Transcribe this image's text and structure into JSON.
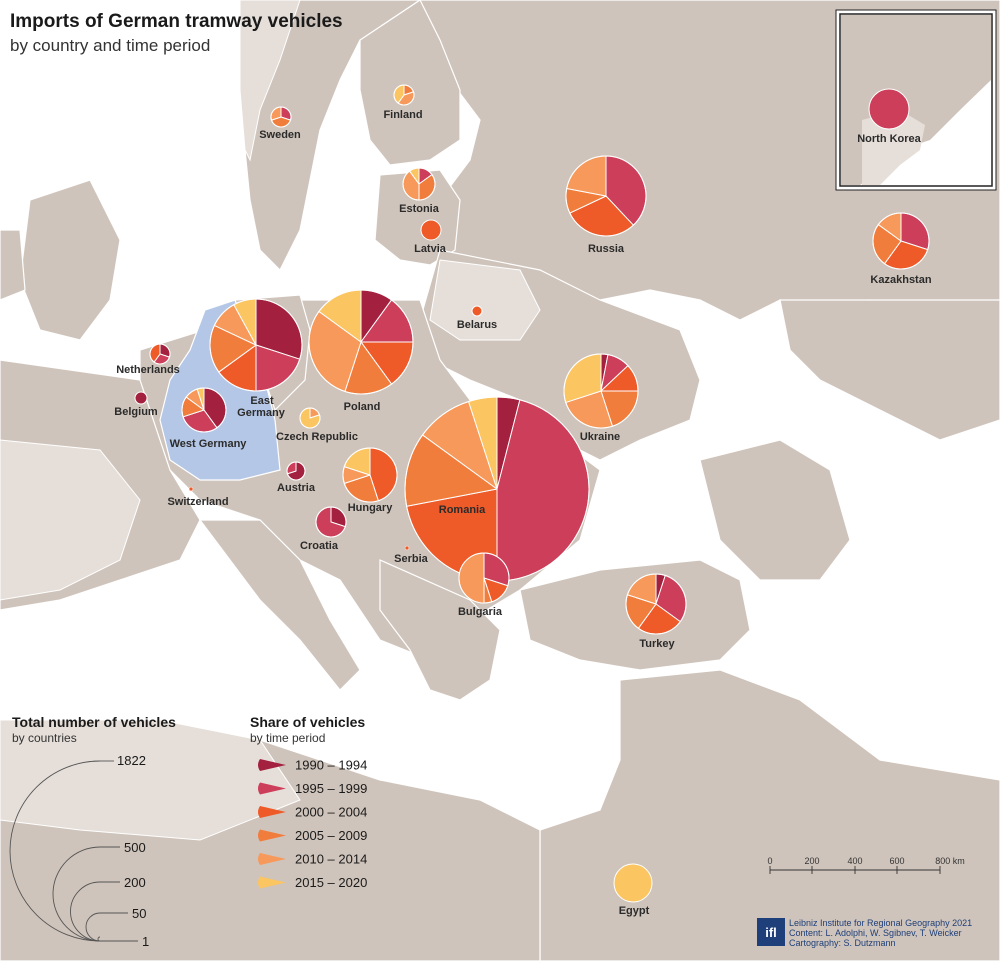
{
  "title": "Imports of German tramway vehicles",
  "subtitle": "by country and time period",
  "colors": {
    "sea": "#ffffff",
    "land": "#cfc4bb",
    "land_light": "#e6dfd9",
    "germany": "#b5c7e6",
    "border": "#ffffff",
    "pie_stroke": "#ffffff"
  },
  "periods": [
    {
      "label": "1990 – 1994",
      "color": "#a3213f"
    },
    {
      "label": "1995 – 1999",
      "color": "#cc3e59"
    },
    {
      "label": "2000 – 2004",
      "color": "#ee5a28"
    },
    {
      "label": "2005 – 2009",
      "color": "#f17d3d"
    },
    {
      "label": "2010 – 2014",
      "color": "#f6995a"
    },
    {
      "label": "2015 – 2020",
      "color": "#fbc561"
    }
  ],
  "size_legend": {
    "heading": "Total number of vehicles",
    "subheading": "by countries",
    "values": [
      "1822",
      "500",
      "200",
      "50",
      "1"
    ]
  },
  "share_legend": {
    "heading": "Share of vehicles",
    "subheading": "by time period"
  },
  "scale_bar": {
    "ticks": [
      "0",
      "200",
      "400",
      "600",
      "800 km"
    ]
  },
  "credits": {
    "logo": "ifl",
    "lines": [
      "Leibniz Institute for Regional Geography 2021",
      "Content: L. Adolphi, W. Sgibnev, T. Weicker",
      "Cartography: S. Dutzmann"
    ]
  },
  "inset": {
    "label": "North Korea"
  },
  "countries": [
    {
      "name": "Sweden",
      "shares": [
        0,
        30,
        0,
        40,
        30,
        0
      ]
    },
    {
      "name": "Finland",
      "shares": [
        0,
        0,
        0,
        20,
        40,
        40
      ]
    },
    {
      "name": "Estonia",
      "shares": [
        0,
        15,
        0,
        35,
        40,
        10
      ]
    },
    {
      "name": "Latvia",
      "shares": [
        0,
        0,
        100,
        0,
        0,
        0
      ]
    },
    {
      "name": "Russia",
      "shares": [
        0,
        38,
        30,
        10,
        22,
        0
      ]
    },
    {
      "name": "Kazakhstan",
      "shares": [
        0,
        30,
        30,
        25,
        15,
        0
      ]
    },
    {
      "name": "Belarus",
      "shares": [
        0,
        0,
        100,
        0,
        0,
        0
      ]
    },
    {
      "name": "Netherlands",
      "shares": [
        30,
        30,
        40,
        0,
        0,
        0
      ]
    },
    {
      "name": "Belgium",
      "shares": [
        100,
        0,
        0,
        0,
        0,
        0
      ]
    },
    {
      "name": "East Germany",
      "shares": [
        30,
        20,
        15,
        17,
        10,
        8
      ]
    },
    {
      "name": "West Germany",
      "shares": [
        40,
        30,
        0,
        15,
        10,
        5
      ]
    },
    {
      "name": "Poland",
      "shares": [
        10,
        15,
        15,
        15,
        30,
        15
      ]
    },
    {
      "name": "Ukraine",
      "shares": [
        3,
        10,
        12,
        20,
        25,
        30
      ]
    },
    {
      "name": "Czech Republic",
      "shares": [
        0,
        0,
        0,
        0,
        20,
        80
      ]
    },
    {
      "name": "Austria",
      "shares": [
        70,
        30,
        0,
        0,
        0,
        0
      ]
    },
    {
      "name": "Switzerland",
      "shares": [
        0,
        0,
        100,
        0,
        0,
        0
      ]
    },
    {
      "name": "Hungary",
      "shares": [
        0,
        0,
        45,
        25,
        10,
        20
      ]
    },
    {
      "name": "Romania",
      "shares": [
        4,
        46,
        22,
        13,
        10,
        5
      ]
    },
    {
      "name": "Croatia",
      "shares": [
        30,
        70,
        0,
        0,
        0,
        0
      ]
    },
    {
      "name": "Serbia",
      "shares": [
        0,
        0,
        100,
        0,
        0,
        0
      ]
    },
    {
      "name": "Bulgaria",
      "shares": [
        0,
        30,
        15,
        5,
        50,
        0
      ]
    },
    {
      "name": "Turkey",
      "shares": [
        5,
        30,
        25,
        20,
        20,
        0
      ]
    },
    {
      "name": "Egypt",
      "shares": [
        0,
        0,
        0,
        0,
        0,
        100
      ]
    },
    {
      "name": "North Korea",
      "shares": [
        0,
        100,
        0,
        0,
        0,
        0
      ]
    }
  ]
}
